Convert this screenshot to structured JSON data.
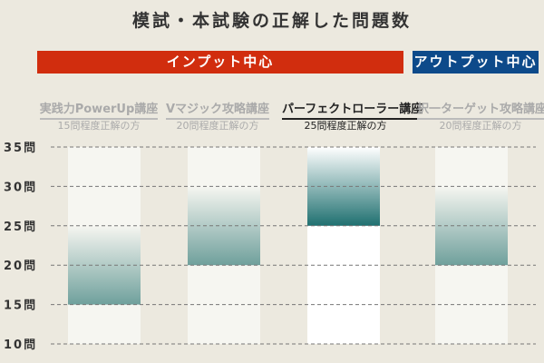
{
  "title": "模試・本試験の正解した問題数",
  "bands": [
    {
      "label": "インプット中心",
      "color": "#d12d0e"
    },
    {
      "label": "アウトプット中心",
      "color": "#0d4a8a"
    }
  ],
  "chart_data": {
    "type": "bar",
    "categories": [
      {
        "name": "実践力PowerUp講座",
        "sub": "15問程度正解の方"
      },
      {
        "name": "Vマジック攻略講座",
        "sub": "20問程度正解の方"
      },
      {
        "name": "パーフェクトローラー講座",
        "sub": "25問程度正解の方"
      },
      {
        "name": "択一ターゲット攻略講座",
        "sub": "20問程度正解の方"
      }
    ],
    "ranges": [
      [
        15,
        25
      ],
      [
        20,
        30
      ],
      [
        25,
        35
      ],
      [
        20,
        30
      ]
    ],
    "highlighted": 2,
    "yticks": [
      "35問",
      "30問",
      "25問",
      "20問",
      "15問",
      "10問"
    ],
    "ylim": [
      10,
      35
    ],
    "grid": true,
    "colors": {
      "bar": "#1f7070",
      "bar_faded": "#6fa09c"
    }
  }
}
